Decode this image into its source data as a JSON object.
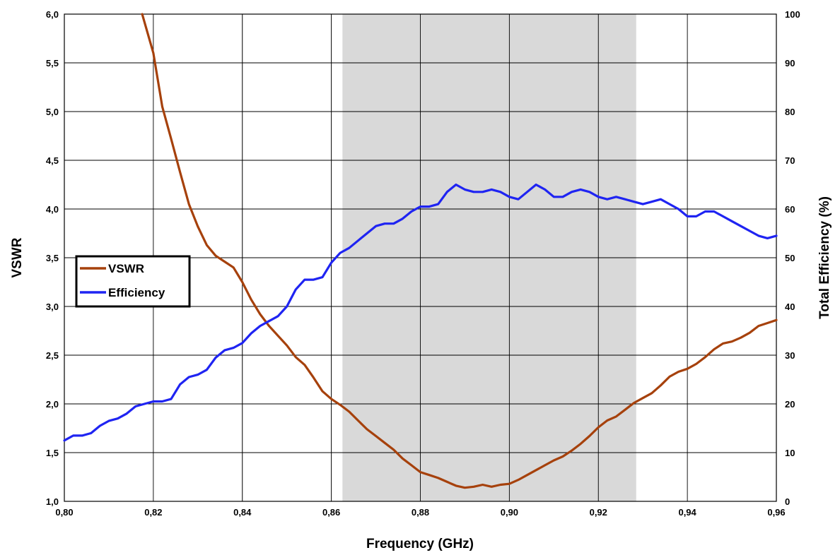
{
  "chart_data": {
    "type": "line",
    "title": "",
    "xlabel": "Frequency (GHz)",
    "ylabel": "VSWR",
    "y2label": "Total Efficiency (%)",
    "xlim": [
      0.8,
      0.96
    ],
    "ylim": [
      1.0,
      6.0
    ],
    "y2lim": [
      0,
      100
    ],
    "x_ticks": [
      "0,80",
      "0,82",
      "0,84",
      "0,86",
      "0,88",
      "0,90",
      "0,92",
      "0,94",
      "0,96"
    ],
    "x_tick_values": [
      0.8,
      0.82,
      0.84,
      0.86,
      0.88,
      0.9,
      0.92,
      0.94,
      0.96
    ],
    "x_minor_grid": [
      0.84,
      0.86,
      0.92
    ],
    "y_ticks": [
      "1,0",
      "1,5",
      "2,0",
      "2,5",
      "3,0",
      "3,5",
      "4,0",
      "4,5",
      "5,0",
      "5,5",
      "6,0"
    ],
    "y_tick_values": [
      1.0,
      1.5,
      2.0,
      2.5,
      3.0,
      3.5,
      4.0,
      4.5,
      5.0,
      5.5,
      6.0
    ],
    "y2_ticks": [
      "0",
      "10",
      "20",
      "30",
      "40",
      "50",
      "60",
      "70",
      "80",
      "90",
      "100"
    ],
    "y2_tick_values": [
      0,
      10,
      20,
      30,
      40,
      50,
      60,
      70,
      80,
      90,
      100
    ],
    "grid": true,
    "shaded_band": {
      "x_start": 0.8625,
      "x_end": 0.9285,
      "color": "#d9d9d9"
    },
    "legend": {
      "position": "left",
      "entries": [
        "VSWR",
        "Efficiency"
      ]
    },
    "series": [
      {
        "name": "VSWR",
        "axis": "left",
        "color": "#a6410c",
        "x": [
          0.8175,
          0.82,
          0.822,
          0.824,
          0.826,
          0.828,
          0.83,
          0.832,
          0.834,
          0.836,
          0.838,
          0.84,
          0.842,
          0.844,
          0.846,
          0.848,
          0.85,
          0.852,
          0.854,
          0.856,
          0.858,
          0.86,
          0.862,
          0.864,
          0.866,
          0.868,
          0.87,
          0.872,
          0.874,
          0.876,
          0.878,
          0.88,
          0.882,
          0.884,
          0.886,
          0.888,
          0.89,
          0.892,
          0.894,
          0.896,
          0.898,
          0.9,
          0.902,
          0.904,
          0.906,
          0.908,
          0.91,
          0.912,
          0.914,
          0.916,
          0.918,
          0.92,
          0.922,
          0.924,
          0.926,
          0.928,
          0.93,
          0.932,
          0.934,
          0.936,
          0.938,
          0.94,
          0.942,
          0.944,
          0.946,
          0.948,
          0.95,
          0.952,
          0.954,
          0.956,
          0.958,
          0.96
        ],
        "values": [
          6.0,
          5.6,
          5.05,
          4.72,
          4.38,
          4.05,
          3.82,
          3.63,
          3.52,
          3.46,
          3.4,
          3.25,
          3.07,
          2.92,
          2.8,
          2.7,
          2.6,
          2.48,
          2.4,
          2.27,
          2.13,
          2.05,
          1.99,
          1.92,
          1.83,
          1.74,
          1.67,
          1.6,
          1.53,
          1.44,
          1.37,
          1.3,
          1.27,
          1.24,
          1.2,
          1.16,
          1.14,
          1.15,
          1.17,
          1.15,
          1.17,
          1.18,
          1.22,
          1.27,
          1.32,
          1.37,
          1.42,
          1.46,
          1.52,
          1.59,
          1.67,
          1.76,
          1.83,
          1.87,
          1.94,
          2.01,
          2.06,
          2.11,
          2.19,
          2.28,
          2.33,
          2.36,
          2.41,
          2.48,
          2.56,
          2.62,
          2.64,
          2.68,
          2.73,
          2.8,
          2.83,
          2.86
        ]
      },
      {
        "name": "Efficiency",
        "axis": "right",
        "color": "#1f24f2",
        "x": [
          0.8,
          0.802,
          0.804,
          0.806,
          0.808,
          0.81,
          0.812,
          0.814,
          0.816,
          0.818,
          0.82,
          0.822,
          0.824,
          0.826,
          0.828,
          0.83,
          0.832,
          0.834,
          0.836,
          0.838,
          0.84,
          0.842,
          0.844,
          0.846,
          0.848,
          0.85,
          0.852,
          0.854,
          0.856,
          0.858,
          0.86,
          0.862,
          0.864,
          0.866,
          0.868,
          0.87,
          0.872,
          0.874,
          0.876,
          0.878,
          0.88,
          0.882,
          0.884,
          0.886,
          0.888,
          0.89,
          0.892,
          0.894,
          0.896,
          0.898,
          0.9,
          0.902,
          0.904,
          0.906,
          0.908,
          0.91,
          0.912,
          0.914,
          0.916,
          0.918,
          0.92,
          0.922,
          0.924,
          0.926,
          0.928,
          0.93,
          0.932,
          0.934,
          0.936,
          0.938,
          0.94,
          0.942,
          0.944,
          0.946,
          0.948,
          0.95,
          0.952,
          0.954,
          0.956,
          0.958,
          0.96
        ],
        "values": [
          12.5,
          13.5,
          13.5,
          14.0,
          15.5,
          16.5,
          17.0,
          18.0,
          19.5,
          20.0,
          20.5,
          20.5,
          21.0,
          24.0,
          25.5,
          26.0,
          27.0,
          29.5,
          31.0,
          31.5,
          32.5,
          34.5,
          36.0,
          37.0,
          38.0,
          40.0,
          43.5,
          45.5,
          45.5,
          46.0,
          49.0,
          51.0,
          52.0,
          53.5,
          55.0,
          56.5,
          57.0,
          57.0,
          58.0,
          59.5,
          60.5,
          60.5,
          61.0,
          63.5,
          65.0,
          64.0,
          63.5,
          63.5,
          64.0,
          63.5,
          62.5,
          62.0,
          63.5,
          65.0,
          64.0,
          62.5,
          62.5,
          63.5,
          64.0,
          63.5,
          62.5,
          62.0,
          62.5,
          62.0,
          61.5,
          61.0,
          61.5,
          62.0,
          61.0,
          60.0,
          58.5,
          58.5,
          59.5,
          59.5,
          58.5,
          57.5,
          56.5,
          55.5,
          54.5,
          54.0,
          54.5
        ]
      }
    ]
  }
}
